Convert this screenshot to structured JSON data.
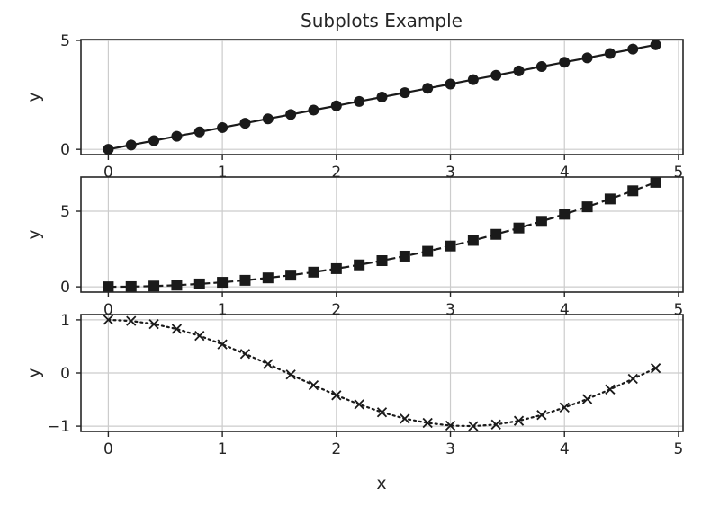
{
  "chart_data": {
    "title": "Subplots Example",
    "xlabel": "x",
    "subplots": [
      {
        "type": "line",
        "ylabel": "y",
        "marker": "circle",
        "linestyle": "solid",
        "color": "#1a1a1a",
        "x": [
          0,
          0.2,
          0.4,
          0.6,
          0.8,
          1.0,
          1.2,
          1.4,
          1.6,
          1.8,
          2.0,
          2.2,
          2.4,
          2.6,
          2.8,
          3.0,
          3.2,
          3.4,
          3.6,
          3.8,
          4.0,
          4.2,
          4.4,
          4.6,
          4.8
        ],
        "y": [
          0,
          0.2,
          0.4,
          0.6,
          0.8,
          1.0,
          1.2,
          1.4,
          1.6,
          1.8,
          2.0,
          2.2,
          2.4,
          2.6,
          2.8,
          3.0,
          3.2,
          3.4,
          3.6,
          3.8,
          4.0,
          4.2,
          4.4,
          4.6,
          4.8
        ],
        "xlim": [
          -0.24,
          5.04
        ],
        "ylim": [
          -0.24,
          5.04
        ],
        "xticks": [
          "0",
          "1",
          "2",
          "3",
          "4",
          "5"
        ],
        "yticks": [
          "0",
          "5"
        ],
        "grid": true
      },
      {
        "type": "line",
        "ylabel": "y",
        "marker": "square",
        "linestyle": "dashed",
        "color": "#1a1a1a",
        "x": [
          0,
          0.2,
          0.4,
          0.6,
          0.8,
          1.0,
          1.2,
          1.4,
          1.6,
          1.8,
          2.0,
          2.2,
          2.4,
          2.6,
          2.8,
          3.0,
          3.2,
          3.4,
          3.6,
          3.8,
          4.0,
          4.2,
          4.4,
          4.6,
          4.8
        ],
        "y": [
          0,
          0.01,
          0.05,
          0.11,
          0.19,
          0.3,
          0.43,
          0.59,
          0.77,
          0.97,
          1.2,
          1.45,
          1.73,
          2.03,
          2.35,
          2.7,
          3.07,
          3.47,
          3.89,
          4.33,
          4.8,
          5.29,
          5.81,
          6.35,
          6.91
        ],
        "xlim": [
          -0.24,
          5.04
        ],
        "ylim": [
          -0.35,
          7.26
        ],
        "xticks": [
          "0",
          "1",
          "2",
          "3",
          "4",
          "5"
        ],
        "yticks": [
          "0",
          "5"
        ],
        "grid": true
      },
      {
        "type": "line",
        "ylabel": "y",
        "marker": "x",
        "linestyle": "dotted",
        "color": "#1a1a1a",
        "x": [
          0,
          0.2,
          0.4,
          0.6,
          0.8,
          1.0,
          1.2,
          1.4,
          1.6,
          1.8,
          2.0,
          2.2,
          2.4,
          2.6,
          2.8,
          3.0,
          3.2,
          3.4,
          3.6,
          3.8,
          4.0,
          4.2,
          4.4,
          4.6,
          4.8
        ],
        "y": [
          1.0,
          0.98,
          0.92,
          0.83,
          0.7,
          0.54,
          0.36,
          0.17,
          -0.03,
          -0.23,
          -0.42,
          -0.59,
          -0.74,
          -0.86,
          -0.94,
          -0.99,
          -1.0,
          -0.97,
          -0.9,
          -0.79,
          -0.65,
          -0.49,
          -0.31,
          -0.11,
          0.09
        ],
        "xlim": [
          -0.24,
          5.04
        ],
        "ylim": [
          -1.1,
          1.1
        ],
        "xticks": [
          "0",
          "1",
          "2",
          "3",
          "4",
          "5"
        ],
        "yticks": [
          "−1",
          "0",
          "1"
        ],
        "grid": true
      }
    ]
  }
}
